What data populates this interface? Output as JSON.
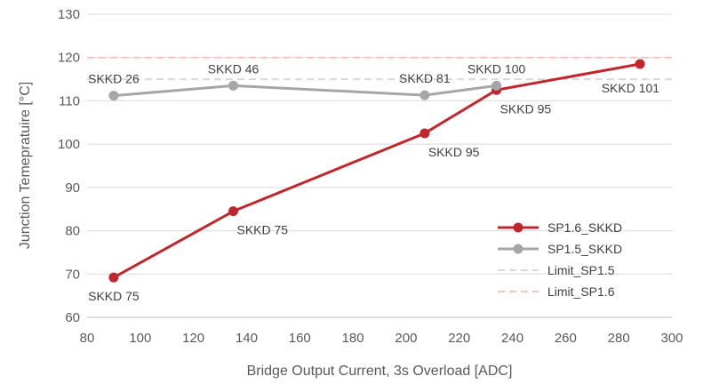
{
  "chart_data": {
    "type": "line",
    "xlabel": "Bridge Output Current, 3s Overload [ADC]",
    "ylabel": "Junction Temepratuire [°C]",
    "xlim": [
      80,
      300
    ],
    "ylim": [
      60,
      130
    ],
    "x_ticks": [
      80,
      100,
      120,
      140,
      160,
      180,
      200,
      220,
      240,
      260,
      280,
      300
    ],
    "y_ticks": [
      60,
      70,
      80,
      90,
      100,
      110,
      120,
      130
    ],
    "grid": "horizontal",
    "legend_position": "right",
    "series": [
      {
        "name": "SP1.6_SKKD",
        "color": "#c0272d",
        "marker": "circle",
        "points": [
          {
            "x": 90,
            "y": 69.2,
            "label": "SKKD 75",
            "label_pos": "below"
          },
          {
            "x": 135,
            "y": 84.5,
            "label": "SKKD 75",
            "label_pos": "below-right"
          },
          {
            "x": 207,
            "y": 102.5,
            "label": "SKKD 95",
            "label_pos": "below-right"
          },
          {
            "x": 234,
            "y": 112.5,
            "label": "SKKD 95",
            "label_pos": "below-right"
          },
          {
            "x": 288,
            "y": 118.5,
            "label": "SKKD 101",
            "label_pos": "below-left"
          }
        ]
      },
      {
        "name": "SP1.5_SKKD",
        "color": "#a6a6a6",
        "marker": "circle",
        "points": [
          {
            "x": 90,
            "y": 111.2,
            "label": "SKKD 26",
            "label_pos": "above"
          },
          {
            "x": 135,
            "y": 113.5,
            "label": "SKKD 46",
            "label_pos": "above"
          },
          {
            "x": 207,
            "y": 111.3,
            "label": "SKKD 81",
            "label_pos": "above"
          },
          {
            "x": 234,
            "y": 113.5,
            "label": "SKKD 100",
            "label_pos": "above"
          }
        ]
      },
      {
        "name": "Limit_SP1.5",
        "color": "#d9d9d9",
        "dashed": true,
        "y": 115
      },
      {
        "name": "Limit_SP1.6",
        "color": "#f2c4c6",
        "dashed": true,
        "y": 120
      }
    ]
  }
}
